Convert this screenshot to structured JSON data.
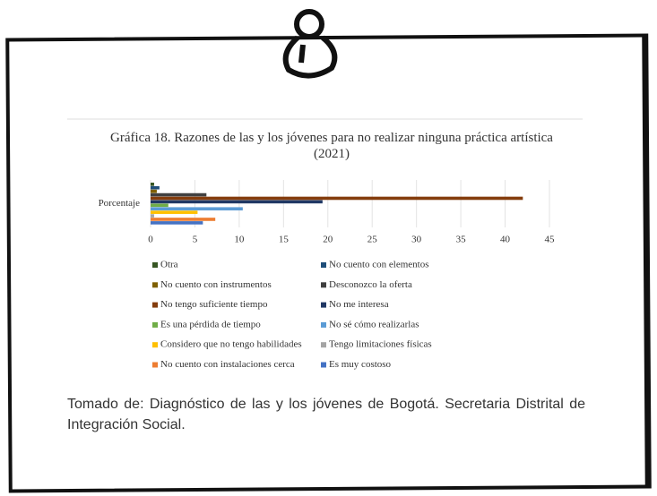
{
  "chart_data": {
    "type": "hbar",
    "title": "Gráfica 18. Razones de las y los jóvenes para no realizar ninguna práctica artística (2021)",
    "categories": [
      "Porcentaje"
    ],
    "xlim": [
      0,
      45
    ],
    "xticks": [
      0,
      5,
      10,
      15,
      20,
      25,
      30,
      35,
      40,
      45
    ],
    "grid": true,
    "series": [
      {
        "name": "Otra",
        "color": "#375623",
        "values": [
          0.4
        ]
      },
      {
        "name": "No cuento con elementos",
        "color": "#1f4e79",
        "values": [
          1
        ]
      },
      {
        "name": "No cuento con instrumentos",
        "color": "#7f6000",
        "values": [
          0.7
        ]
      },
      {
        "name": "Desconozco la oferta",
        "color": "#404040",
        "values": [
          6.3
        ]
      },
      {
        "name": "No tengo suficiente tiempo",
        "color": "#843c0c",
        "values": [
          42
        ]
      },
      {
        "name": "No me interesa",
        "color": "#203864",
        "values": [
          19.4
        ]
      },
      {
        "name": "Es una pérdida de tiempo",
        "color": "#70ad47",
        "values": [
          2
        ]
      },
      {
        "name": "No sé cómo realizarlas",
        "color": "#5b9bd5",
        "values": [
          10.4
        ]
      },
      {
        "name": "Considero que no tengo habilidades",
        "color": "#ffc000",
        "values": [
          5.3
        ]
      },
      {
        "name": "Tengo limitaciones físicas",
        "color": "#a5a5a5",
        "values": [
          0.4
        ]
      },
      {
        "name": "No cuento con instalaciones cerca",
        "color": "#ed7d31",
        "values": [
          7.3
        ]
      },
      {
        "name": "Es muy costoso",
        "color": "#4472c4",
        "values": [
          5.9
        ]
      }
    ]
  },
  "caption": "Tomado de: Diagnóstico de las y los jóvenes de Bogotá. Secretaria Distrital de Integración Social."
}
